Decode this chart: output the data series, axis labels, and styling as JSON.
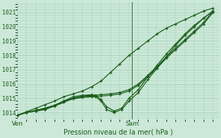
{
  "xlabel": "Pression niveau de la mer( hPa )",
  "background_color": "#cce8d8",
  "grid_color": "#99ccb0",
  "line_color": "#1a5c1a",
  "ylim": [
    1013.5,
    1021.7
  ],
  "yticks": [
    1014,
    1015,
    1016,
    1017,
    1018,
    1019,
    1020,
    1021
  ],
  "xlim_left": 0.0,
  "xlim_right": 1.08,
  "vline_x": 0.615,
  "xtick_labels": [
    "Ven",
    "Sam"
  ],
  "xtick_positions": [
    0.0,
    0.615
  ],
  "series": [
    {
      "x": [
        0.0,
        0.05,
        0.1,
        0.15,
        0.2,
        0.25,
        0.3,
        0.35,
        0.4,
        0.45,
        0.5,
        0.55,
        0.6,
        0.65,
        0.7,
        0.75,
        0.8,
        0.85,
        0.9,
        0.95,
        1.0,
        1.05
      ],
      "y": [
        1013.8,
        1014.05,
        1014.3,
        1014.55,
        1014.8,
        1015.1,
        1015.3,
        1015.5,
        1015.8,
        1016.2,
        1016.8,
        1017.4,
        1018.0,
        1018.5,
        1019.0,
        1019.5,
        1019.9,
        1020.2,
        1020.5,
        1020.8,
        1021.1,
        1021.3
      ]
    },
    {
      "x": [
        0.0,
        0.05,
        0.1,
        0.15,
        0.2,
        0.25,
        0.3,
        0.35,
        0.4,
        0.45,
        0.5,
        0.55,
        0.6,
        0.65,
        0.7,
        0.75,
        0.8,
        0.85,
        0.9,
        0.95,
        1.0,
        1.05
      ],
      "y": [
        1013.8,
        1014.0,
        1014.15,
        1014.3,
        1014.5,
        1014.8,
        1015.0,
        1015.15,
        1015.2,
        1015.25,
        1015.3,
        1015.4,
        1015.6,
        1016.0,
        1016.6,
        1017.2,
        1017.9,
        1018.5,
        1019.1,
        1019.7,
        1020.3,
        1021.1
      ]
    },
    {
      "x": [
        0.0,
        0.05,
        0.1,
        0.15,
        0.2,
        0.25,
        0.3,
        0.35,
        0.4,
        0.42,
        0.45,
        0.48,
        0.52,
        0.56,
        0.6,
        0.65,
        0.7,
        0.75,
        0.8,
        0.85,
        0.9,
        0.95,
        1.0,
        1.05
      ],
      "y": [
        1013.8,
        1014.0,
        1014.1,
        1014.25,
        1014.5,
        1014.8,
        1015.1,
        1015.2,
        1015.25,
        1015.2,
        1014.9,
        1014.4,
        1014.1,
        1014.3,
        1015.0,
        1015.6,
        1016.5,
        1017.3,
        1018.1,
        1018.8,
        1019.5,
        1020.1,
        1020.6,
        1021.1
      ]
    },
    {
      "x": [
        0.0,
        0.05,
        0.1,
        0.15,
        0.2,
        0.25,
        0.3,
        0.35,
        0.4,
        0.42,
        0.45,
        0.48,
        0.52,
        0.56,
        0.6,
        0.65,
        0.7,
        0.75,
        0.8,
        0.85,
        0.9,
        0.95,
        1.0,
        1.05
      ],
      "y": [
        1013.8,
        1014.0,
        1014.1,
        1014.2,
        1014.45,
        1014.7,
        1015.0,
        1015.1,
        1015.15,
        1015.1,
        1014.8,
        1014.2,
        1014.0,
        1014.2,
        1014.8,
        1015.4,
        1016.3,
        1017.1,
        1017.9,
        1018.7,
        1019.4,
        1020.0,
        1020.6,
        1021.1
      ]
    },
    {
      "x": [
        0.0,
        0.05,
        0.1,
        0.15,
        0.2,
        0.25,
        0.3,
        0.35,
        0.4,
        0.45,
        0.5,
        0.55,
        0.6,
        0.65,
        0.7,
        0.75,
        0.8,
        0.85,
        0.9,
        0.95,
        1.0,
        1.05
      ],
      "y": [
        1013.8,
        1014.0,
        1014.15,
        1014.3,
        1014.5,
        1014.75,
        1014.95,
        1015.05,
        1015.1,
        1015.15,
        1015.2,
        1015.3,
        1015.5,
        1015.9,
        1016.5,
        1017.1,
        1017.8,
        1018.4,
        1019.0,
        1019.6,
        1020.2,
        1021.0
      ]
    }
  ]
}
